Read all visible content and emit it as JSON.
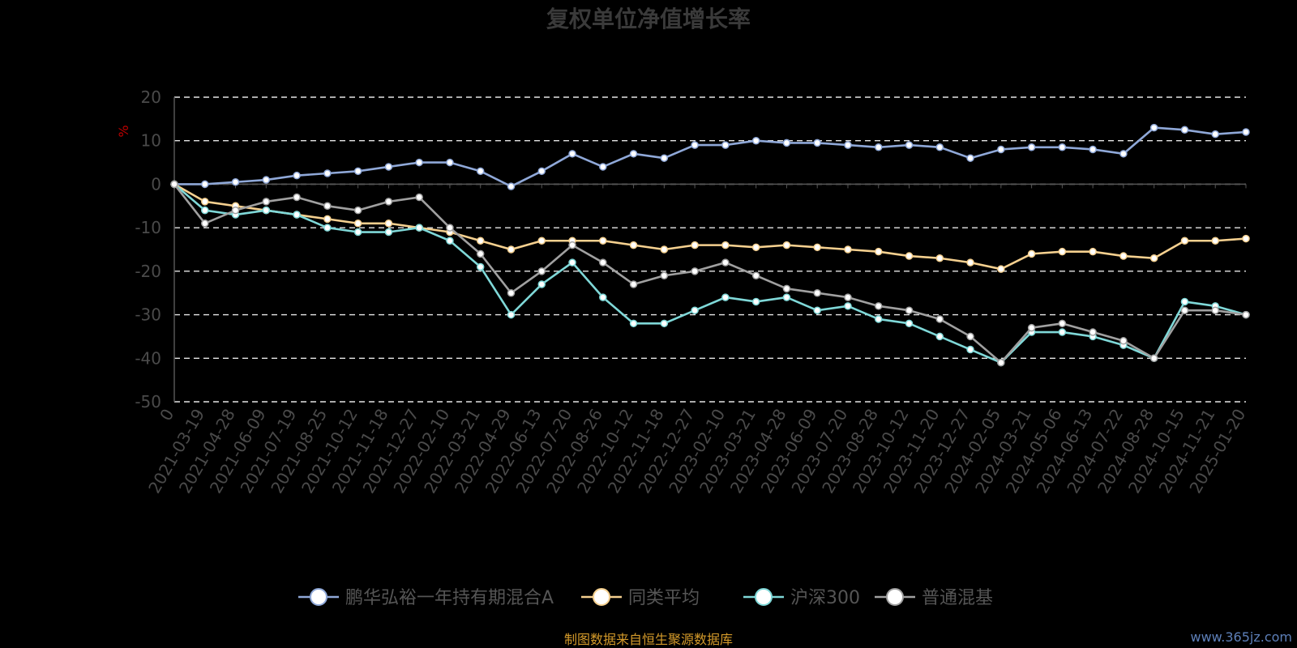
{
  "chart_data": {
    "type": "line",
    "title": "复权单位净值增长率",
    "ylabel": "%",
    "ylim": [
      -50,
      20
    ],
    "yticks": [
      20,
      10,
      0,
      -10,
      -20,
      -30,
      -40,
      -50
    ],
    "grid": true,
    "legend_position": "bottom",
    "x_labels": [
      "0",
      "2021-03-19",
      "2021-04-28",
      "2021-06-09",
      "2021-07-19",
      "2021-08-25",
      "2021-10-12",
      "2021-11-18",
      "2021-12-27",
      "2022-02-10",
      "2022-03-21",
      "2022-04-29",
      "2022-06-13",
      "2022-07-20",
      "2022-08-26",
      "2022-10-12",
      "2022-11-18",
      "2022-12-27",
      "2023-02-10",
      "2023-03-21",
      "2023-04-28",
      "2023-06-09",
      "2023-07-20",
      "2023-08-28",
      "2023-10-12",
      "2023-11-20",
      "2023-12-27",
      "2024-02-05",
      "2024-03-21",
      "2024-05-06",
      "2024-06-13",
      "2024-07-22",
      "2024-08-28",
      "2024-10-15",
      "2024-11-21",
      "2025-01-20"
    ],
    "series": [
      {
        "name": "鹏华弘裕一年持有期混合A",
        "color": "#8fa8d8",
        "values": [
          0,
          0,
          0.5,
          1,
          2,
          2.5,
          3,
          4,
          5,
          5,
          3,
          -0.5,
          3,
          7,
          4,
          7,
          6,
          9,
          9,
          10,
          9.5,
          9.5,
          9,
          8.5,
          9,
          8.5,
          6,
          8,
          8.5,
          8.5,
          8,
          7,
          13,
          12.5,
          11.5,
          12
        ]
      },
      {
        "name": "同类平均",
        "color": "#f5d08f",
        "values": [
          0,
          -4,
          -5,
          -6,
          -7,
          -8,
          -9,
          -9,
          -10,
          -11,
          -13,
          -15,
          -13,
          -13,
          -13,
          -14,
          -15,
          -14,
          -14,
          -14.5,
          -14,
          -14.5,
          -15,
          -15.5,
          -16.5,
          -17,
          -18,
          -19.5,
          -16,
          -15.5,
          -15.5,
          -16.5,
          -17,
          -13,
          -13,
          -12.5
        ]
      },
      {
        "name": "沪深300",
        "color": "#7fd8d8",
        "values": [
          0,
          -6,
          -7,
          -6,
          -7,
          -10,
          -11,
          -11,
          -10,
          -13,
          -19,
          -30,
          -23,
          -18,
          -26,
          -32,
          -32,
          -29,
          -26,
          -27,
          -26,
          -29,
          -28,
          -31,
          -32,
          -35,
          -38,
          -41,
          -34,
          -34,
          -35,
          -37,
          -40,
          -27,
          -28,
          -30
        ]
      },
      {
        "name": "普通混基",
        "color": "#a0a0a0",
        "values": [
          0,
          -9,
          -6,
          -4,
          -3,
          -5,
          -6,
          -4,
          -3,
          -10,
          -16,
          -25,
          -20,
          -14,
          -18,
          -23,
          -21,
          -20,
          -18,
          -21,
          -24,
          -25,
          -26,
          -28,
          -29,
          -31,
          -35,
          -41,
          -33,
          -32,
          -34,
          -36,
          -40,
          -29,
          -29,
          -30
        ]
      }
    ]
  },
  "source_note": "制图数据来自恒生聚源数据库",
  "watermark": "www.365jz.com"
}
